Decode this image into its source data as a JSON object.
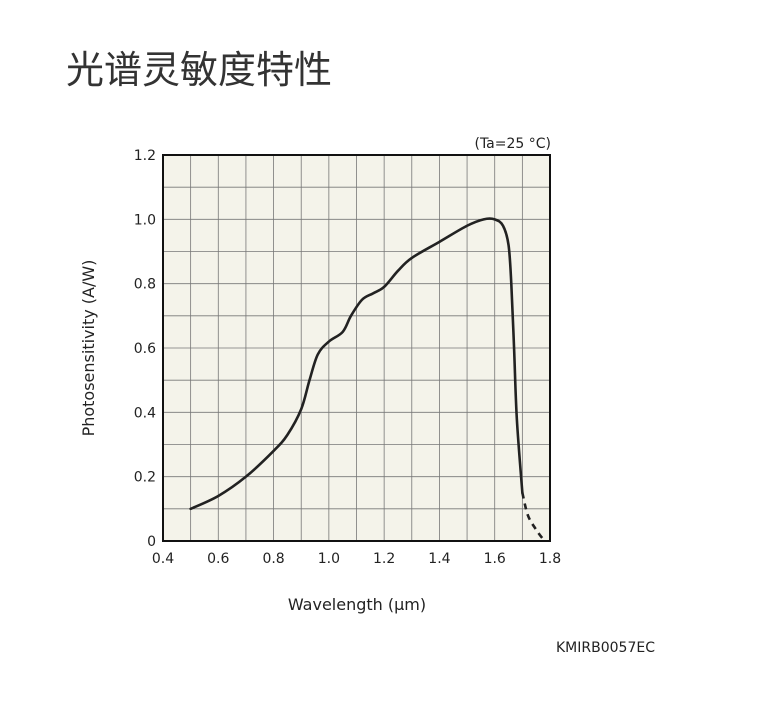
{
  "title": "光谱灵敏度特性",
  "figure_code": "KMIRB0057EC",
  "chart_data": {
    "type": "line",
    "title": "",
    "xlabel": "Wavelength (μm)",
    "ylabel": "Photosensitivity (A/W)",
    "annotation": "(Ta=25 °C)",
    "xlim": [
      0.4,
      1.8
    ],
    "ylim": [
      0,
      1.2
    ],
    "x_ticks": [
      "0.4",
      "0.6",
      "0.8",
      "1.0",
      "1.2",
      "1.4",
      "1.6",
      "1.8"
    ],
    "y_ticks": [
      "0",
      "0.2",
      "0.4",
      "0.6",
      "0.8",
      "1.0",
      "1.2"
    ],
    "grid": true,
    "grid_step": {
      "x": 0.1,
      "y": 0.1
    },
    "legend": "none",
    "series": [
      {
        "line_style": "solid",
        "points": [
          [
            0.5,
            0.1
          ],
          [
            0.6,
            0.14
          ],
          [
            0.7,
            0.2
          ],
          [
            0.8,
            0.28
          ],
          [
            0.85,
            0.33
          ],
          [
            0.9,
            0.41
          ],
          [
            0.93,
            0.5
          ],
          [
            0.96,
            0.58
          ],
          [
            1.0,
            0.62
          ],
          [
            1.05,
            0.65
          ],
          [
            1.08,
            0.7
          ],
          [
            1.12,
            0.75
          ],
          [
            1.16,
            0.77
          ],
          [
            1.2,
            0.79
          ],
          [
            1.25,
            0.84
          ],
          [
            1.3,
            0.88
          ],
          [
            1.4,
            0.93
          ],
          [
            1.5,
            0.98
          ],
          [
            1.56,
            1.0
          ],
          [
            1.6,
            1.0
          ],
          [
            1.63,
            0.98
          ],
          [
            1.65,
            0.92
          ],
          [
            1.66,
            0.8
          ],
          [
            1.67,
            0.6
          ],
          [
            1.68,
            0.38
          ],
          [
            1.7,
            0.15
          ]
        ]
      },
      {
        "line_style": "dashed",
        "points": [
          [
            1.7,
            0.15
          ],
          [
            1.72,
            0.08
          ],
          [
            1.75,
            0.035
          ],
          [
            1.78,
            0.0
          ]
        ]
      }
    ],
    "colors": {
      "line": "#222222",
      "plot_background": "#f4f3ea",
      "grid": "#777777",
      "frame": "#111111"
    }
  }
}
